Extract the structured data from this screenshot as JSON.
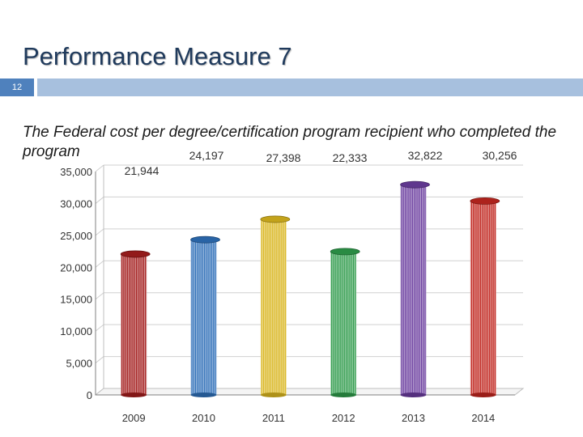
{
  "slide": {
    "title": "Performance Measure 7",
    "number": "12"
  },
  "chart_data": {
    "type": "bar",
    "title": "The Federal cost per degree/certification program recipient who completed the program",
    "xlabel": "",
    "ylabel": "",
    "categories": [
      "2009",
      "2010",
      "2011",
      "2012",
      "2013",
      "2014"
    ],
    "values": [
      21944,
      24197,
      27398,
      22333,
      32822,
      30256
    ],
    "value_labels": [
      "21,944",
      "24,197",
      "27,398",
      "22,333",
      "32,822",
      "30,256"
    ],
    "ylim": [
      0,
      35000
    ],
    "yticks": [
      0,
      5000,
      10000,
      15000,
      20000,
      25000,
      30000,
      35000
    ],
    "ytick_labels": [
      "0",
      "5,000",
      "10,000",
      "15,000",
      "20,000",
      "25,000",
      "30,000",
      "35,000"
    ],
    "grid": true,
    "legend": "none",
    "colors": [
      "#a31d1d",
      "#2e6fb8",
      "#d9b51e",
      "#2e9a4a",
      "#6a3c9e",
      "#c0261f"
    ]
  }
}
